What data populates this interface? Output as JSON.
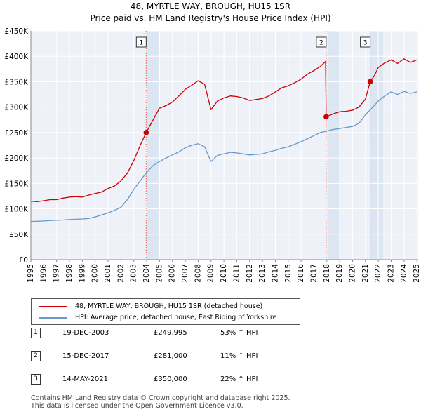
{
  "title_line1": "48, MYRTLE WAY, BROUGH, HU15 1SR",
  "title_line2": "Price paid vs. HM Land Registry's House Price Index (HPI)",
  "colors": {
    "property": "#cc0000",
    "hpi": "#6699cc",
    "shade": "#dce6f2",
    "grid": "#ffffff",
    "bg": "#eef2f8",
    "marker_line": "#dd5555"
  },
  "legend": {
    "property_label": "48, MYRTLE WAY, BROUGH, HU15 1SR (detached house)",
    "hpi_label": "HPI: Average price, detached house, East Riding of Yorkshire"
  },
  "transactions": [
    {
      "num": "1",
      "date": "19-DEC-2003",
      "price": "£249,995",
      "hpi": "53% ↑ HPI"
    },
    {
      "num": "2",
      "date": "15-DEC-2017",
      "price": "£281,000",
      "hpi": "11% ↑ HPI"
    },
    {
      "num": "3",
      "date": "14-MAY-2021",
      "price": "£350,000",
      "hpi": "22% ↑ HPI"
    }
  ],
  "footer_line1": "Contains HM Land Registry data © Crown copyright and database right 2025.",
  "footer_line2": "This data is licensed under the Open Government Licence v3.0.",
  "chart_data": {
    "type": "line",
    "title": "48, MYRTLE WAY, BROUGH, HU15 1SR — Price paid vs. HM Land Registry's House Price Index (HPI)",
    "xlabel": "",
    "ylabel": "",
    "xlim": [
      1995,
      2025.1
    ],
    "ylim": [
      0,
      450000
    ],
    "y_ticks": [
      0,
      50000,
      100000,
      150000,
      200000,
      250000,
      300000,
      350000,
      400000,
      450000
    ],
    "y_tick_labels": [
      "£0",
      "£50K",
      "£100K",
      "£150K",
      "£200K",
      "£250K",
      "£300K",
      "£350K",
      "£400K",
      "£450K"
    ],
    "x_ticks": [
      1995,
      1996,
      1997,
      1998,
      1999,
      2000,
      2001,
      2002,
      2003,
      2004,
      2005,
      2006,
      2007,
      2008,
      2009,
      2010,
      2011,
      2012,
      2013,
      2014,
      2015,
      2016,
      2017,
      2018,
      2019,
      2020,
      2021,
      2022,
      2023,
      2024,
      2025
    ],
    "shaded_regions": [
      [
        2003.96,
        2004.96
      ],
      [
        2017.95,
        2018.95
      ],
      [
        2021.37,
        2022.37
      ]
    ],
    "sale_markers": [
      {
        "label": "1",
        "x": 2003.96,
        "y": 249995
      },
      {
        "label": "2",
        "x": 2017.95,
        "y": 281000
      },
      {
        "label": "3",
        "x": 2021.37,
        "y": 350000
      }
    ],
    "series": [
      {
        "name": "48, MYRTLE WAY, BROUGH, HU15 1SR (detached house)",
        "x": [
          1995,
          1995.5,
          1996,
          1996.5,
          1997,
          1997.5,
          1998,
          1998.5,
          1999,
          1999.5,
          2000,
          2000.5,
          2001,
          2001.5,
          2002,
          2002.5,
          2003,
          2003.5,
          2003.96,
          2004.5,
          2005,
          2005.5,
          2006,
          2006.5,
          2007,
          2007.5,
          2008,
          2008.5,
          2009,
          2009.5,
          2010,
          2010.5,
          2011,
          2011.5,
          2012,
          2012.5,
          2013,
          2013.5,
          2014,
          2014.5,
          2015,
          2015.5,
          2016,
          2016.5,
          2017,
          2017.5,
          2017.9,
          2017.95,
          2018.5,
          2019,
          2019.5,
          2020,
          2020.5,
          2021,
          2021.37,
          2021.7,
          2022,
          2022.5,
          2023,
          2023.5,
          2024,
          2024.5,
          2025
        ],
        "values": [
          115000,
          114000,
          116000,
          118000,
          118000,
          121000,
          123000,
          124000,
          123000,
          127000,
          130000,
          133000,
          140000,
          145000,
          155000,
          170000,
          195000,
          225000,
          249995,
          275000,
          298000,
          303000,
          310000,
          322000,
          335000,
          343000,
          352000,
          345000,
          295000,
          312000,
          318000,
          322000,
          321000,
          318000,
          313000,
          315000,
          317000,
          322000,
          330000,
          338000,
          342000,
          348000,
          355000,
          365000,
          372000,
          380000,
          390000,
          281000,
          287000,
          291000,
          292000,
          294000,
          300000,
          316000,
          350000,
          362000,
          378000,
          387000,
          393000,
          386000,
          395000,
          388000,
          393000
        ]
      },
      {
        "name": "HPI: Average price, detached house, East Riding of Yorkshire",
        "x": [
          1995,
          1995.5,
          1996,
          1996.5,
          1997,
          1997.5,
          1998,
          1998.5,
          1999,
          1999.5,
          2000,
          2000.5,
          2001,
          2001.5,
          2002,
          2002.5,
          2003,
          2003.5,
          2004,
          2004.5,
          2005,
          2005.5,
          2006,
          2006.5,
          2007,
          2007.5,
          2008,
          2008.5,
          2009,
          2009.5,
          2010,
          2010.5,
          2011,
          2011.5,
          2012,
          2012.5,
          2013,
          2013.5,
          2014,
          2014.5,
          2015,
          2015.5,
          2016,
          2016.5,
          2017,
          2017.5,
          2018,
          2018.5,
          2019,
          2019.5,
          2020,
          2020.5,
          2021,
          2021.5,
          2022,
          2022.5,
          2023,
          2023.5,
          2024,
          2024.5,
          2025
        ],
        "values": [
          75000,
          75500,
          76000,
          77000,
          77500,
          78000,
          79000,
          79500,
          80000,
          81000,
          84000,
          88000,
          92000,
          97000,
          103000,
          118000,
          138000,
          155000,
          172000,
          185000,
          193000,
          200000,
          206000,
          212000,
          220000,
          225000,
          228000,
          222000,
          193000,
          205000,
          208000,
          211000,
          210000,
          208000,
          206000,
          207000,
          208000,
          212000,
          215000,
          219000,
          222000,
          227000,
          232000,
          238000,
          244000,
          250000,
          253000,
          256000,
          258000,
          260000,
          262000,
          268000,
          285000,
          298000,
          312000,
          322000,
          330000,
          325000,
          331000,
          327000,
          330000
        ]
      }
    ]
  }
}
